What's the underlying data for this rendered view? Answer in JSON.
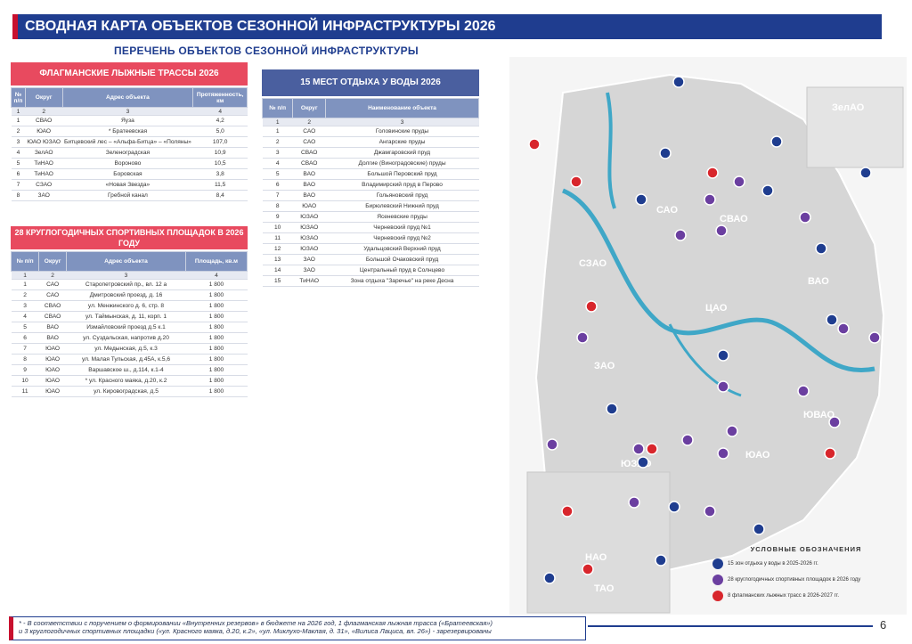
{
  "header": {
    "title": "СВОДНАЯ КАРТА ОБЪЕКТОВ СЕЗОННОЙ ИНФРАСТРУКТУРЫ 2026",
    "subtitle": "ПЕРЕЧЕНЬ ОБЪЕКТОВ СЕЗОННОЙ ИНФРАСТРУКТУРЫ"
  },
  "ski": {
    "title": "ФЛАГМАНСКИЕ ЛЫЖНЫЕ ТРАССЫ 2026",
    "headers": [
      "№ п/п",
      "Округ",
      "Адрес объекта",
      "Протяженность, км"
    ],
    "index": [
      "1",
      "2",
      "3",
      "4"
    ],
    "rows": [
      [
        "1",
        "СВАО",
        "Яуза",
        "4,2"
      ],
      [
        "2",
        "ЮАО",
        "* Братеевская",
        "5,0"
      ],
      [
        "3",
        "ЮАО ЮЗАО",
        "Битцевский лес – «Альфа-Битца» – «Поляны»",
        "107,0"
      ],
      [
        "4",
        "ЗелАО",
        "Зеленоградская",
        "10,9"
      ],
      [
        "5",
        "ТиНАО",
        "Вороново",
        "10,5"
      ],
      [
        "6",
        "ТиНАО",
        "Боровская",
        "3,8"
      ],
      [
        "7",
        "СЗАО",
        "«Новая Звезда»",
        "11,5"
      ],
      [
        "8",
        "ЗАО",
        "Гребной канал",
        "8,4"
      ]
    ]
  },
  "sports": {
    "title": "28 КРУГЛОГОДИЧНЫХ СПОРТИВНЫХ ПЛОЩАДОК В 2026 ГОДУ",
    "headers": [
      "№ п/п",
      "Округ",
      "Адрес объекта",
      "Площадь, кв.м"
    ],
    "index": [
      "1",
      "2",
      "3",
      "4"
    ],
    "rows": [
      [
        "1",
        "САО",
        "Старопетровский пр., вл. 12 а",
        "1 800"
      ],
      [
        "2",
        "САО",
        "Дмитровский проезд, д. 16",
        "1 800"
      ],
      [
        "3",
        "СВАО",
        "ул. Менжинского д. 6, стр. 8",
        "1 800"
      ],
      [
        "4",
        "СВАО",
        "ул. Таймынская, д. 11, корп. 1",
        "1 800"
      ],
      [
        "5",
        "ВАО",
        "Измайловский проезд д.5 к.1",
        "1 800"
      ],
      [
        "6",
        "ВАО",
        "ул. Суздальская, напротив д.20",
        "1 800"
      ],
      [
        "7",
        "ЮАО",
        "ул. Медынская, д.5, к.3",
        "1 800"
      ],
      [
        "8",
        "ЮАО",
        "ул. Малая Тульская, д.45А, к.5,6",
        "1 800"
      ],
      [
        "9",
        "ЮАО",
        "Варшавское ш., д.114, к.1-4",
        "1 800"
      ],
      [
        "10",
        "ЮАО",
        "* ул. Красного маяка, д.20, к.2",
        "1 800"
      ],
      [
        "11",
        "ЮАО",
        "ул. Кировоградская, д.5",
        "1 800"
      ]
    ]
  },
  "water": {
    "title": "15 МЕСТ ОТДЫХА У ВОДЫ 2026",
    "headers": [
      "№ п/п",
      "Округ",
      "Наименование объекта"
    ],
    "index": [
      "1",
      "2",
      "3"
    ],
    "rows": [
      [
        "1",
        "САО",
        "Головинские пруды"
      ],
      [
        "2",
        "САО",
        "Ангарские пруды"
      ],
      [
        "3",
        "СВАО",
        "Джамгаровский пруд"
      ],
      [
        "4",
        "СВАО",
        "Долгие (Виноградовские) пруды"
      ],
      [
        "5",
        "ВАО",
        "Большой Перовский пруд"
      ],
      [
        "6",
        "ВАО",
        "Владимирский пруд в Перово"
      ],
      [
        "7",
        "ВАО",
        "Гольяновский пруд"
      ],
      [
        "8",
        "ЮАО",
        "Бирюлевский Нижний пруд"
      ],
      [
        "9",
        "ЮЗАО",
        "Ясеневские пруды"
      ],
      [
        "10",
        "ЮЗАО",
        "Черневский пруд №1"
      ],
      [
        "11",
        "ЮЗАО",
        "Черневский пруд №2"
      ],
      [
        "12",
        "ЮЗАО",
        "Удальцовский Верхний пруд"
      ],
      [
        "13",
        "ЗАО",
        "Большой Очаковский пруд"
      ],
      [
        "14",
        "ЗАО",
        "Центральный пруд в Солнцево"
      ],
      [
        "15",
        "ТиНАО",
        "Зона отдыха \"Заречье\" на реке Десна"
      ]
    ]
  },
  "map": {
    "districts": [
      "ЗелАО",
      "САО",
      "СВАО",
      "СЗАО",
      "ВАО",
      "ЦАО",
      "ЗАО",
      "ЮВАО",
      "ЮАО",
      "ЮЗАО",
      "НАО",
      "ТАО"
    ]
  },
  "legend": {
    "title": "УСЛОВНЫЕ ОБОЗНАЧЕНИЯ",
    "items": [
      {
        "text": "15 зон отдыха у воды в 2025-2026 гг.",
        "color": "#1f3d8f"
      },
      {
        "text": "28 круглогодичных спортивных площадок в 2026 году",
        "color": "#6b3fa0"
      },
      {
        "text": "8 флагманских лыжных трасс в 2026-2027 гг.",
        "color": "#d8262c"
      }
    ]
  },
  "footnote": {
    "line1": "* - В соответствии с поручением о формировании «Внутренних резервов» в бюджете на 2026 год, 1 флагманская лыжная трасса («Братеевская»)",
    "line2": "и 3 круглогодичных спортивных площадки («ул. Красного маяка, д.20, к.2», «ул. Миклухо-Маклая, д. 31», «Вилиса Лациса, вл. 26») - зарезервированы"
  },
  "page_number": "6",
  "colors": {
    "accent": "#1f3d8f",
    "red": "#c8102e",
    "purple": "#6b3fa0"
  }
}
